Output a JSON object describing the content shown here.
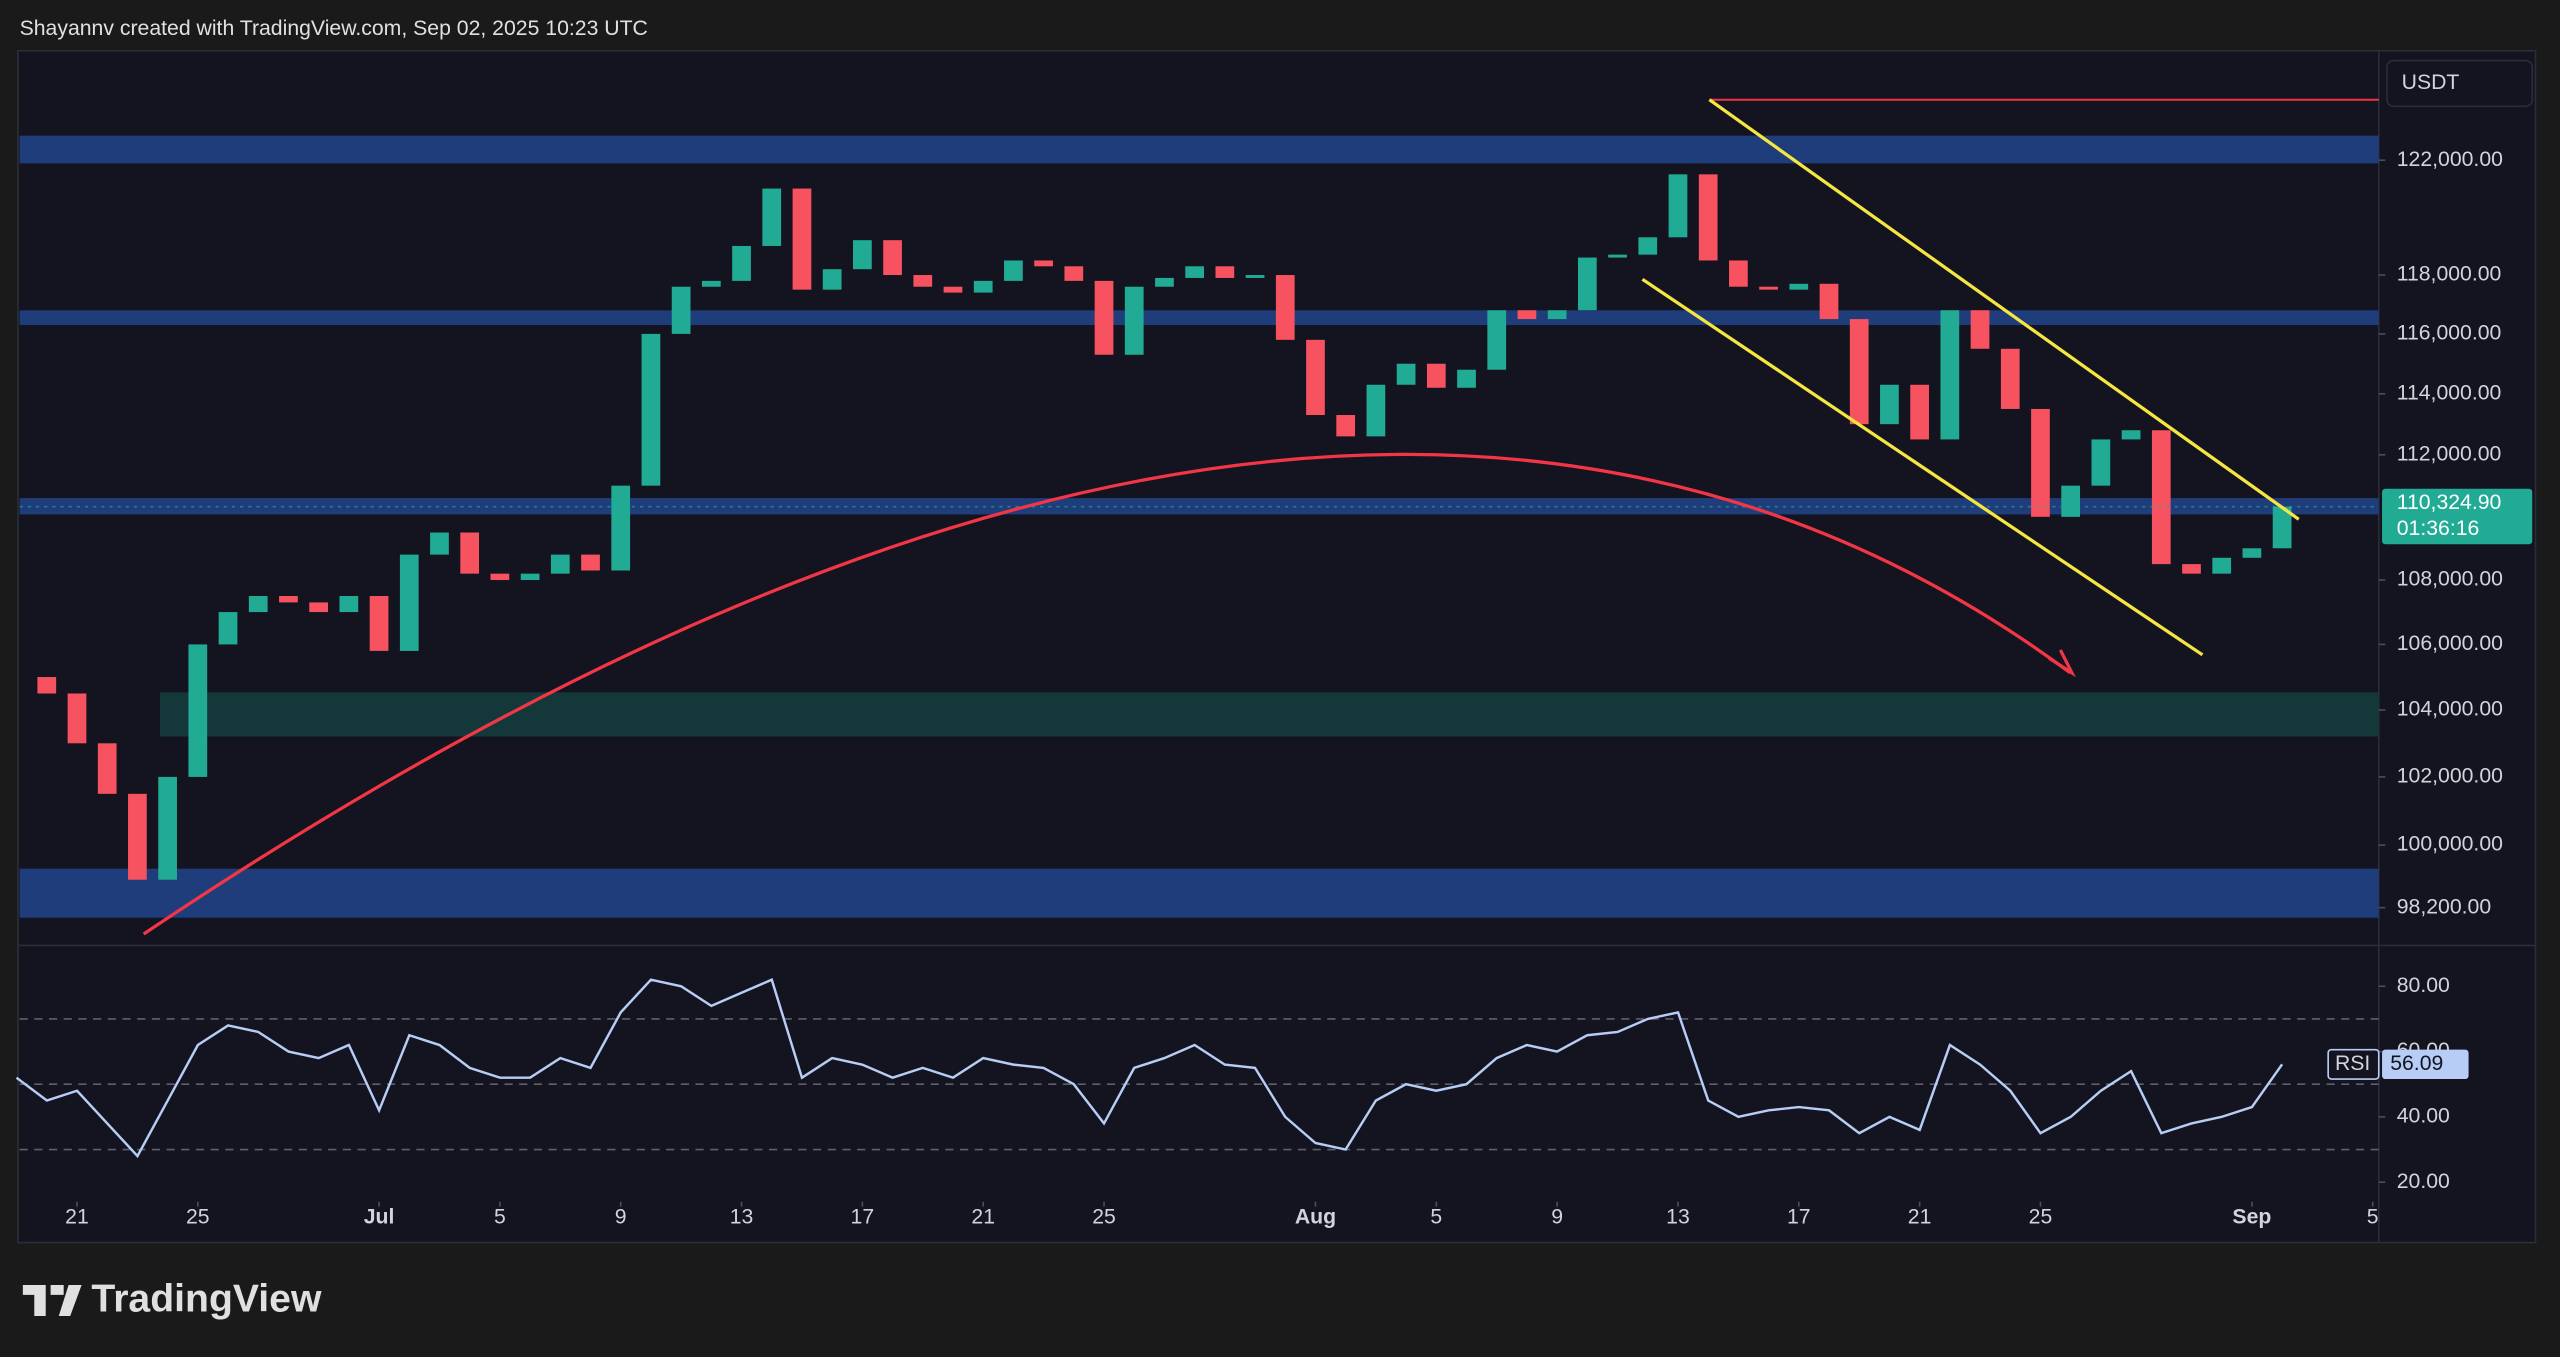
{
  "header": "Shayannv created with TradingView.com, Sep 02, 2025 10:23 UTC",
  "logo": "TradingView",
  "currency": "USDT",
  "chart_data": [
    {
      "type": "candlestick",
      "x": [
        -2,
        -1,
        0,
        1,
        2,
        3,
        4,
        5,
        6,
        7,
        8,
        9,
        10,
        11,
        12,
        13,
        14,
        15,
        16,
        17,
        18,
        19,
        20,
        21,
        22,
        23,
        24,
        25,
        26,
        27,
        28,
        29,
        30,
        31,
        32,
        33,
        34,
        35,
        36,
        37,
        38,
        39,
        40,
        41,
        42,
        43,
        44,
        45,
        46,
        47,
        48,
        49,
        50,
        51,
        52,
        53,
        54,
        55,
        56,
        57,
        58,
        59,
        60,
        61,
        62,
        63,
        64,
        65,
        66,
        67,
        68,
        69,
        70,
        71,
        72,
        73
      ],
      "values": [
        105000,
        104500,
        103000,
        101500,
        99000,
        102000,
        106000,
        107000,
        107500,
        107300,
        107000,
        107500,
        105800,
        108800,
        109500,
        108200,
        108000,
        108200,
        108800,
        108300,
        111000,
        116000,
        117600,
        117800,
        119000,
        121000,
        117500,
        118200,
        119200,
        118000,
        117600,
        117400,
        117800,
        118500,
        118300,
        117800,
        115300,
        117600,
        117900,
        118300,
        117900,
        118000,
        115800,
        113300,
        112600,
        114300,
        115000,
        114200,
        114800,
        116800,
        116500,
        116800,
        118600,
        118700,
        119300,
        121500,
        118500,
        117600,
        117500,
        117700,
        116500,
        113000,
        114300,
        112500,
        116800,
        115500,
        113500,
        110000,
        111000,
        112500,
        112800,
        108500,
        108200,
        108700,
        109000,
        110324.9
      ],
      "last_value_label": "110,324.90",
      "countdown": "01:36:16",
      "up_color": "#22ab94",
      "down_color": "#f7525f",
      "log_scale": true,
      "xlim": [
        -1.9,
        76.2
      ],
      "xticks": [
        {
          "value": 0,
          "label": "21"
        },
        {
          "value": 4,
          "label": "25"
        },
        {
          "value": 10,
          "label": "Jul"
        },
        {
          "value": 14,
          "label": "5"
        },
        {
          "value": 18,
          "label": "9"
        },
        {
          "value": 22,
          "label": "13"
        },
        {
          "value": 26,
          "label": "17"
        },
        {
          "value": 30,
          "label": "21"
        },
        {
          "value": 34,
          "label": "25"
        },
        {
          "value": 41,
          "label": "Aug"
        },
        {
          "value": 45,
          "label": "5"
        },
        {
          "value": 49,
          "label": "9"
        },
        {
          "value": 53,
          "label": "13"
        },
        {
          "value": 57,
          "label": "17"
        },
        {
          "value": 61,
          "label": "21"
        },
        {
          "value": 65,
          "label": "25"
        },
        {
          "value": 72,
          "label": "Sep"
        },
        {
          "value": 76,
          "label": "5"
        }
      ],
      "ylim": [
        97175,
        125880
      ],
      "yticks": [
        {
          "value": 122000,
          "label": "122,000.00"
        },
        {
          "value": 118000,
          "label": "118,000.00"
        },
        {
          "value": 116000,
          "label": "116,000.00"
        },
        {
          "value": 114000,
          "label": "114,000.00"
        },
        {
          "value": 112000,
          "label": "112,000.00"
        },
        {
          "value": 108000,
          "label": "108,000.00"
        },
        {
          "value": 106000,
          "label": "106,000.00"
        },
        {
          "value": 104000,
          "label": "104,000.00"
        },
        {
          "value": 102000,
          "label": "102,000.00"
        },
        {
          "value": 100000,
          "label": "100,000.00"
        },
        {
          "value": 98200,
          "label": "98,200.00"
        }
      ]
    },
    {
      "type": "line",
      "name": "RSI",
      "color": "#b8cdf5",
      "x": [
        -2,
        -1,
        0,
        1,
        2,
        3,
        4,
        5,
        6,
        7,
        8,
        9,
        10,
        11,
        12,
        13,
        14,
        15,
        16,
        17,
        18,
        19,
        20,
        21,
        22,
        23,
        24,
        25,
        26,
        27,
        28,
        29,
        30,
        31,
        32,
        33,
        34,
        35,
        36,
        37,
        38,
        39,
        40,
        41,
        42,
        43,
        44,
        45,
        46,
        47,
        48,
        49,
        50,
        51,
        52,
        53,
        54,
        55,
        56,
        57,
        58,
        59,
        60,
        61,
        62,
        63,
        64,
        65,
        66,
        67,
        68,
        69,
        70,
        71,
        72,
        73
      ],
      "values": [
        52,
        45,
        48,
        38,
        28,
        45,
        62,
        68,
        66,
        60,
        58,
        62,
        42,
        65,
        62,
        55,
        52,
        52,
        58,
        55,
        72,
        82,
        80,
        74,
        78,
        82,
        52,
        58,
        56,
        52,
        55,
        52,
        58,
        56,
        55,
        50,
        38,
        55,
        58,
        62,
        56,
        55,
        40,
        32,
        30,
        45,
        50,
        48,
        50,
        58,
        62,
        60,
        65,
        66,
        70,
        72,
        45,
        40,
        42,
        43,
        42,
        35,
        40,
        36,
        62,
        56,
        48,
        35,
        40,
        48,
        54,
        35,
        38,
        40,
        43,
        56.09
      ],
      "levels": [
        70,
        50,
        30
      ],
      "ylim": [
        14.5,
        92
      ],
      "yticks": [
        {
          "value": 80,
          "label": "80.00"
        },
        {
          "value": 60,
          "label": "60.00"
        },
        {
          "value": 40,
          "label": "40.00"
        },
        {
          "value": 20,
          "label": "20.00"
        }
      ]
    }
  ]
}
